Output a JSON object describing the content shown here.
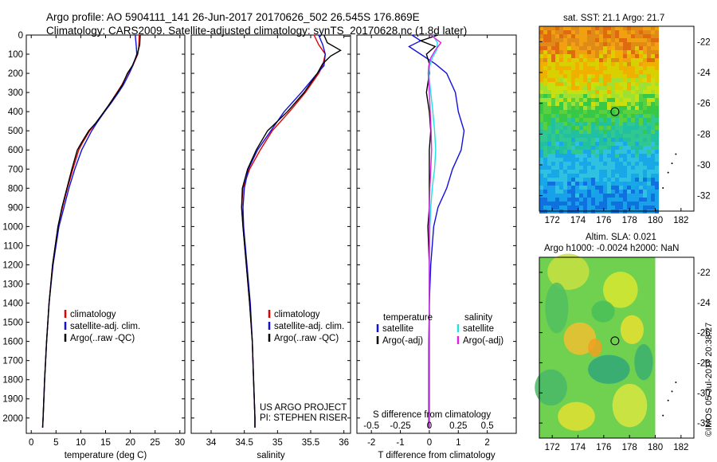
{
  "header": {
    "line1": "Argo profile: AO 5904111_141 26-Jun-2017 20170626_502 26.545S 176.869E",
    "line2": "Climatology: CARS2009. Satellite-adjusted climatology: synTS_20170628.nc (1.8d later)"
  },
  "sst_map": {
    "title": "sat. SST: 21.1  Argo: 21.7",
    "xticks": [
      "172",
      "174",
      "176",
      "178",
      "180",
      "182"
    ],
    "yticks": [
      "-22",
      "-24",
      "-26",
      "-28",
      "-30",
      "-32"
    ]
  },
  "sla_map": {
    "title1": "Altim. SLA: 0.021",
    "title2": "Argo h1000: -0.0024 h2000: NaN",
    "xticks": [
      "172",
      "174",
      "176",
      "178",
      "180",
      "182"
    ],
    "yticks": [
      "-22",
      "-24",
      "-26",
      "-28",
      "-30",
      "-32"
    ]
  },
  "credits": {
    "project": "US ARGO PROJECT",
    "pi": "PI: STEPHEN RISER",
    "stamp": "©IMOS 05-Jul-2017 20:38:27"
  },
  "colors": {
    "climatology": "#e00000",
    "satellite": "#1010e0",
    "argo": "#000000",
    "argo_sal": "#e020e0",
    "sat_sal": "#20e0e0"
  },
  "chart_data": [
    {
      "type": "line",
      "id": "temperature",
      "xlabel": "temperature (deg C)",
      "ylabel": "",
      "xlim": [
        -1,
        31
      ],
      "ylim": [
        2080,
        0
      ],
      "xticks": [
        "0",
        "5",
        "10",
        "15",
        "20",
        "25",
        "30"
      ],
      "yticks": [
        "0",
        "100",
        "200",
        "300",
        "400",
        "500",
        "600",
        "700",
        "800",
        "900",
        "1000",
        "1100",
        "1200",
        "1300",
        "1400",
        "1500",
        "1600",
        "1700",
        "1800",
        "1900",
        "2000"
      ],
      "legend": [
        "climatology",
        "satellite-adj. clim.",
        "Argo(..raw -QC)"
      ],
      "series": [
        {
          "name": "climatology",
          "depth": [
            0,
            60,
            100,
            160,
            200,
            260,
            300,
            360,
            400,
            460,
            500,
            560,
            600,
            700,
            800,
            900,
            1000,
            1200,
            1400,
            1600,
            1800,
            2000,
            2050
          ],
          "values": [
            21.8,
            21.7,
            21.5,
            20.5,
            19.5,
            18.3,
            17.3,
            15.8,
            14.8,
            13.0,
            11.8,
            10.4,
            9.6,
            8.4,
            7.3,
            6.3,
            5.4,
            4.3,
            3.6,
            3.1,
            2.7,
            2.4,
            2.3
          ]
        },
        {
          "name": "satellite-adj. clim.",
          "depth": [
            0,
            60,
            100,
            160,
            200,
            260,
            300,
            360,
            400,
            460,
            500,
            560,
            600,
            700,
            800,
            900,
            1000,
            1200,
            1400,
            1600,
            1800,
            2000,
            2050
          ],
          "values": [
            21.0,
            21.2,
            21.3,
            20.5,
            19.8,
            18.6,
            17.6,
            16.0,
            14.8,
            13.2,
            12.2,
            11.0,
            10.2,
            8.8,
            7.6,
            6.6,
            5.6,
            4.4,
            3.6,
            3.1,
            2.7,
            2.4,
            2.3
          ]
        },
        {
          "name": "Argo(..raw -QC)",
          "depth": [
            0,
            50,
            100,
            160,
            200,
            260,
            300,
            360,
            400,
            460,
            500,
            560,
            600,
            700,
            800,
            900,
            1000,
            1200,
            1400,
            1600,
            1800,
            2000,
            2050
          ],
          "values": [
            22.0,
            21.9,
            21.4,
            20.4,
            19.4,
            18.4,
            17.4,
            15.8,
            14.7,
            13.0,
            11.6,
            10.2,
            9.3,
            8.2,
            7.2,
            6.2,
            5.4,
            4.3,
            3.6,
            3.1,
            2.7,
            2.4,
            2.3
          ]
        }
      ]
    },
    {
      "type": "line",
      "id": "salinity",
      "xlabel": "salinity",
      "xlim": [
        33.7,
        36.1
      ],
      "ylim": [
        2080,
        0
      ],
      "xticks": [
        "34",
        "34.5",
        "35",
        "35.5",
        "36"
      ],
      "legend": [
        "climatology",
        "satellite-adj. clim.",
        "Argo(..raw -QC)"
      ],
      "series": [
        {
          "name": "climatology",
          "depth": [
            0,
            50,
            100,
            160,
            200,
            300,
            400,
            500,
            600,
            700,
            800,
            900,
            1000,
            1200,
            1400,
            1600,
            1800,
            2000,
            2050
          ],
          "values": [
            35.55,
            35.62,
            35.72,
            35.68,
            35.62,
            35.42,
            35.18,
            34.92,
            34.74,
            34.58,
            34.48,
            34.46,
            34.48,
            34.53,
            34.58,
            34.62,
            34.64,
            34.66,
            34.66
          ]
        },
        {
          "name": "satellite-adj. clim.",
          "depth": [
            0,
            50,
            100,
            160,
            200,
            300,
            400,
            500,
            600,
            700,
            800,
            900,
            1000,
            1200,
            1400,
            1600,
            1800,
            2000,
            2050
          ],
          "values": [
            35.62,
            35.68,
            35.72,
            35.7,
            35.6,
            35.36,
            35.1,
            34.9,
            34.7,
            34.56,
            34.5,
            34.48,
            34.49,
            34.54,
            34.59,
            34.62,
            34.64,
            34.66,
            34.66
          ]
        },
        {
          "name": "Argo(..raw -QC)",
          "depth": [
            0,
            40,
            80,
            110,
            150,
            200,
            300,
            400,
            500,
            600,
            700,
            800,
            900,
            1000,
            1200,
            1400,
            1600,
            1800,
            2000,
            2050
          ],
          "values": [
            35.7,
            35.75,
            35.95,
            35.8,
            35.68,
            35.6,
            35.4,
            35.15,
            34.85,
            34.68,
            34.55,
            34.47,
            34.46,
            34.48,
            34.53,
            34.58,
            34.62,
            34.64,
            34.66,
            34.66
          ]
        }
      ]
    },
    {
      "type": "line",
      "id": "difference",
      "xlabel_bottom": "T difference from climatology",
      "xlabel_top": "S difference from climatology",
      "xlim": [
        -2.5,
        3.0
      ],
      "ylim": [
        2080,
        0
      ],
      "xticks_bottom": [
        "-2",
        "-1",
        "0",
        "1",
        "2"
      ],
      "xticks_top": [
        "-0.5",
        "-0.25",
        "0",
        "0.25",
        "0.5"
      ],
      "legend_temperature_title": "temperature",
      "legend_salinity_title": "salinity",
      "legend_temperature": [
        "satellite",
        "Argo(-adj)"
      ],
      "legend_salinity": [
        "satellite",
        "Argo(-adj)"
      ],
      "series": [
        {
          "name": "temperature satellite",
          "depth": [
            0,
            30,
            60,
            100,
            150,
            200,
            300,
            400,
            500,
            600,
            700,
            800,
            900,
            1000,
            1200,
            1400,
            1600,
            1800,
            2000,
            2050
          ],
          "values": [
            -0.6,
            -0.3,
            -0.7,
            -0.3,
            0.2,
            0.6,
            0.9,
            1.0,
            1.2,
            1.1,
            0.8,
            0.6,
            0.3,
            0.15,
            0.05,
            0.0,
            -0.02,
            -0.02,
            -0.02,
            -0.02
          ]
        },
        {
          "name": "temperature Argo(-adj)",
          "depth": [
            0,
            30,
            60,
            100,
            150,
            200,
            300,
            400,
            500,
            600,
            700,
            800,
            900,
            1000,
            1200,
            1400,
            1600,
            1800,
            2000,
            2050
          ],
          "values": [
            0.3,
            -0.3,
            0.2,
            -0.1,
            0.0,
            0.0,
            -0.1,
            0.0,
            0.05,
            0.0,
            0.0,
            0.0,
            0.0,
            -0.05,
            0.0,
            0.0,
            0.0,
            0.0,
            0.0,
            0.0
          ]
        },
        {
          "name": "salinity satellite",
          "depth": [
            0,
            40,
            80,
            120,
            160,
            200,
            300,
            400,
            500,
            600,
            700,
            800,
            900,
            1000,
            1200,
            1400,
            1600,
            1800,
            2000,
            2050
          ],
          "values": [
            0.12,
            0.28,
            0.25,
            0.1,
            0.02,
            -0.02,
            0.05,
            0.12,
            0.18,
            0.22,
            0.18,
            0.1,
            0.05,
            0.02,
            0.0,
            0.0,
            0.0,
            0.0,
            0.0,
            0.0
          ]
        },
        {
          "name": "salinity Argo(-adj)",
          "depth": [
            0,
            40,
            80,
            120,
            160,
            200,
            300,
            400,
            500,
            600,
            700,
            800,
            900,
            1000,
            1200,
            1400,
            1600,
            1800,
            2000,
            2050
          ],
          "values": [
            0.05,
            0.4,
            0.2,
            0.05,
            -0.02,
            -0.04,
            0.0,
            0.03,
            0.06,
            0.08,
            0.05,
            0.02,
            0.0,
            0.0,
            0.0,
            0.0,
            0.0,
            0.0,
            0.0,
            0.0
          ]
        }
      ]
    }
  ]
}
